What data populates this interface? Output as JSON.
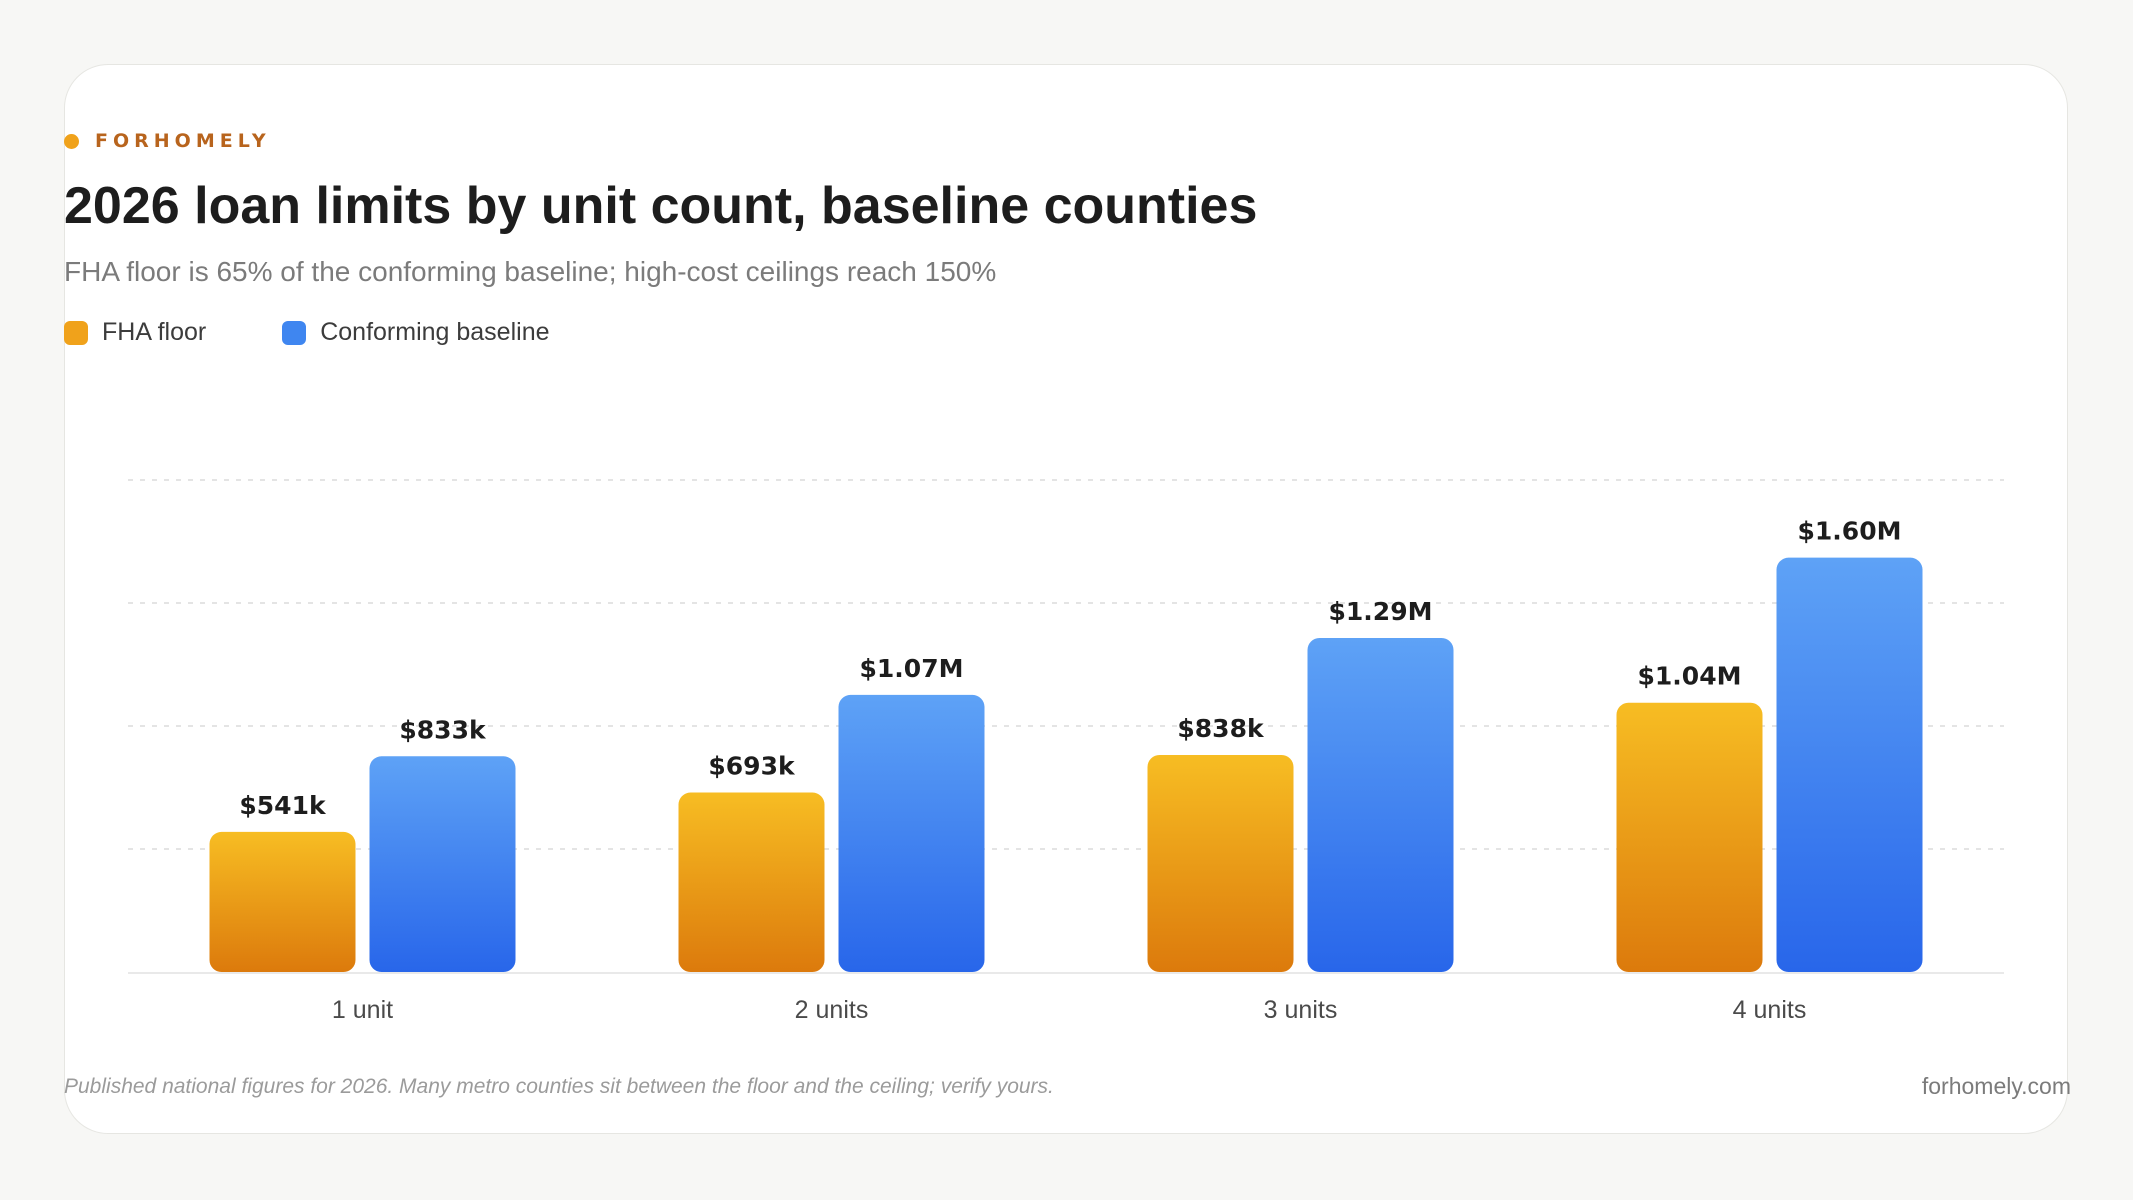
{
  "brand": {
    "name": "FORHOMELY"
  },
  "header": {
    "title": "2026 loan limits by unit count, baseline counties",
    "subtitle": "FHA floor is 65% of the conforming baseline; high-cost ceilings reach 150%"
  },
  "legend": {
    "items": [
      {
        "label": "FHA floor",
        "color": "#f0a21b"
      },
      {
        "label": "Conforming baseline",
        "color": "#3f86f0"
      }
    ]
  },
  "colors": {
    "fha_top": "#f7bd23",
    "fha_bottom": "#dc7a0c",
    "conf_top": "#5ea2f6",
    "conf_bottom": "#2866ea",
    "grid": "#dcdcdc",
    "axis": "#e2e2e2"
  },
  "chart_data": {
    "type": "bar",
    "categories": [
      "1 unit",
      "2 units",
      "3 units",
      "4 units"
    ],
    "series": [
      {
        "name": "FHA floor",
        "values": [
          541,
          693,
          838,
          1040
        ],
        "labels": [
          "$541k",
          "$693k",
          "$838k",
          "$1.04M"
        ]
      },
      {
        "name": "Conforming baseline",
        "values": [
          833,
          1070,
          1290,
          1600
        ],
        "labels": [
          "$833k",
          "$1.07M",
          "$1.29M",
          "$1.60M"
        ]
      }
    ],
    "units": "thousands of USD",
    "ylim": [
      0,
      1900
    ],
    "gridlines": [
      475,
      950,
      1425,
      1900
    ],
    "grid": true,
    "legend_position": "top-left"
  },
  "footer": {
    "note": "Published national figures for 2026. Many metro counties sit between the floor and the ceiling; verify yours.",
    "site": "forhomely.com"
  }
}
